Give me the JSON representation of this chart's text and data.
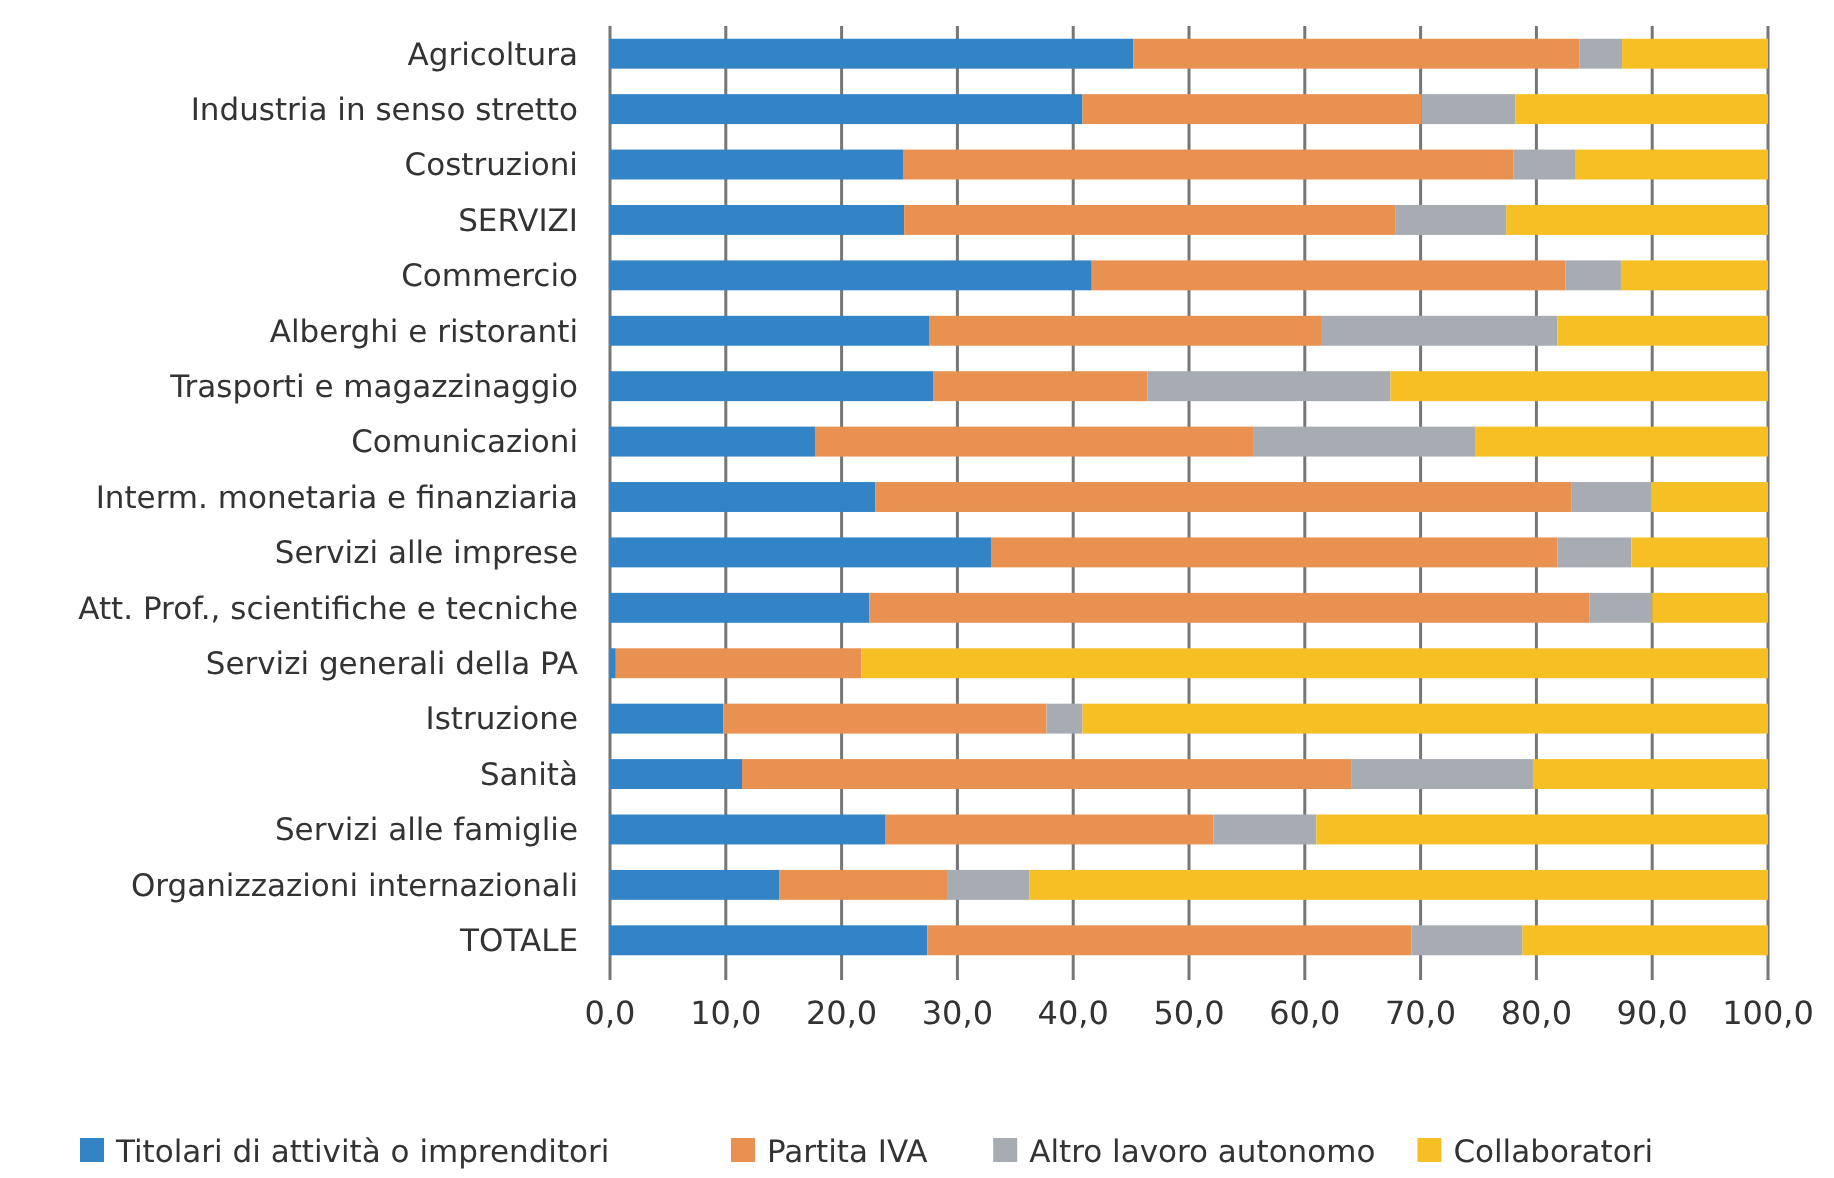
{
  "chart_data": {
    "type": "bar",
    "orientation": "horizontal",
    "stacked": true,
    "grid": "x",
    "legend": "bottom",
    "categories": [
      "Agricoltura",
      "Industria in senso stretto",
      "Costruzioni",
      "SERVIZI",
      "Commercio",
      "Alberghi e ristoranti",
      "Trasporti e magazzinaggio",
      "Comunicazioni",
      "Interm. monetaria e finanziaria",
      "Servizi alle imprese",
      "Att. Prof., scientifiche e tecniche",
      "Servizi generali della PA",
      "Istruzione",
      "Sanità",
      "Servizi alle famiglie",
      "Organizzazioni internazionali",
      "TOTALE"
    ],
    "series": [
      {
        "name": "Titolari di attività o imprenditori",
        "color": "#3284c6",
        "values": [
          45.2,
          40.8,
          25.3,
          25.4,
          41.6,
          27.6,
          27.9,
          17.7,
          22.9,
          32.9,
          22.4,
          0.5,
          9.8,
          11.4,
          23.8,
          14.6,
          27.4
        ]
      },
      {
        "name": "Partita IVA",
        "color": "#e89150",
        "values": [
          38.5,
          29.3,
          52.7,
          42.4,
          40.9,
          33.8,
          18.5,
          37.9,
          60.1,
          48.9,
          62.2,
          21.2,
          27.9,
          52.6,
          28.3,
          14.5,
          41.8
        ]
      },
      {
        "name": "Altro lavoro autonomo",
        "color": "#a7acb2",
        "values": [
          3.7,
          8.1,
          5.4,
          9.6,
          4.8,
          20.4,
          21.0,
          19.1,
          6.9,
          6.4,
          5.4,
          0,
          3.1,
          15.7,
          8.9,
          7.1,
          9.6
        ]
      },
      {
        "name": "Collaboratori",
        "color": "#f6c024",
        "values": [
          12.6,
          21.8,
          16.6,
          22.6,
          12.7,
          18.2,
          32.6,
          25.3,
          10.1,
          11.8,
          10.0,
          78.3,
          59.2,
          20.3,
          39.0,
          63.8,
          21.2
        ]
      }
    ],
    "xlim": [
      0,
      100
    ],
    "xticks": [
      {
        "value": 0,
        "label": "0,0"
      },
      {
        "value": 10,
        "label": "10,0"
      },
      {
        "value": 20,
        "label": "20,0"
      },
      {
        "value": 30,
        "label": "30,0"
      },
      {
        "value": 40,
        "label": "40,0"
      },
      {
        "value": 50,
        "label": "50,0"
      },
      {
        "value": 60,
        "label": "60,0"
      },
      {
        "value": 70,
        "label": "70,0"
      },
      {
        "value": 80,
        "label": "80,0"
      },
      {
        "value": 90,
        "label": "90,0"
      },
      {
        "value": 100,
        "label": "100,0"
      }
    ]
  }
}
